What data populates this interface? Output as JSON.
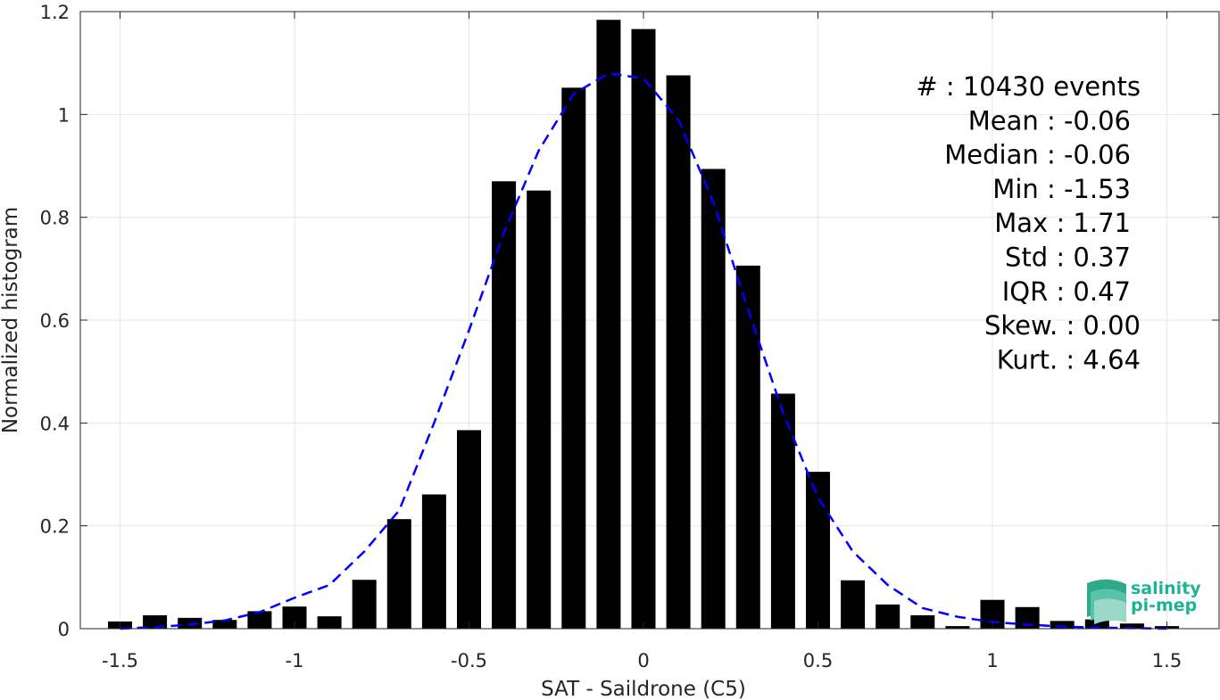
{
  "chart_data": {
    "type": "bar",
    "xlabel": "SAT - Saildrone (C5)",
    "ylabel": "Normalized histogram",
    "xlim": [
      -1.55,
      1.55
    ],
    "ylim": [
      0,
      1.2
    ],
    "xticks": [
      -1.5,
      -1,
      -0.5,
      0,
      0.5,
      1,
      1.5
    ],
    "xtick_labels": [
      "-1.5",
      "-1",
      "-0.5",
      "0",
      "0.5",
      "1",
      "1.5"
    ],
    "yticks": [
      0,
      0.2,
      0.4,
      0.6,
      0.8,
      1,
      1.2
    ],
    "ytick_labels": [
      "0",
      "0.2",
      "0.4",
      "0.6",
      "0.8",
      "1",
      "1.2"
    ],
    "grid": true,
    "bar_color": "#000000",
    "fit_color": "#0000ff",
    "bars": {
      "x": [
        -1.5,
        -1.4,
        -1.3,
        -1.2,
        -1.1,
        -1.0,
        -0.9,
        -0.8,
        -0.7,
        -0.6,
        -0.5,
        -0.4,
        -0.3,
        -0.2,
        -0.1,
        0.0,
        0.1,
        0.2,
        0.3,
        0.4,
        0.5,
        0.6,
        0.7,
        0.8,
        0.9,
        1.0,
        1.1,
        1.2,
        1.3,
        1.4,
        1.5
      ],
      "values": [
        0.014,
        0.026,
        0.021,
        0.017,
        0.034,
        0.043,
        0.024,
        0.095,
        0.213,
        0.261,
        0.386,
        0.87,
        0.852,
        1.052,
        1.184,
        1.166,
        1.076,
        0.894,
        0.706,
        0.457,
        0.305,
        0.094,
        0.047,
        0.026,
        0.005,
        0.056,
        0.042,
        0.015,
        0.018,
        0.01,
        0.005
      ]
    },
    "fit_curve": {
      "style": "dashed",
      "x": [
        -1.5,
        -1.4,
        -1.3,
        -1.2,
        -1.1,
        -1.0,
        -0.9,
        -0.8,
        -0.7,
        -0.6,
        -0.5,
        -0.4,
        -0.3,
        -0.2,
        -0.1,
        -0.05,
        0.0,
        0.1,
        0.2,
        0.3,
        0.4,
        0.5,
        0.6,
        0.7,
        0.8,
        0.9,
        1.0,
        1.1,
        1.2,
        1.3,
        1.4,
        1.5
      ],
      "y": [
        0.0,
        0.003,
        0.008,
        0.016,
        0.032,
        0.06,
        0.085,
        0.15,
        0.23,
        0.4,
        0.58,
        0.77,
        0.93,
        1.04,
        1.08,
        1.075,
        1.07,
        0.99,
        0.83,
        0.62,
        0.42,
        0.255,
        0.15,
        0.085,
        0.04,
        0.023,
        0.013,
        0.008,
        0.004,
        0.002,
        0.001,
        0.0
      ]
    },
    "stats": [
      {
        "label": "#  : 10430 events"
      },
      {
        "label": "Mean : -0.06"
      },
      {
        "label": "Median : -0.06"
      },
      {
        "label": "Min : -1.53"
      },
      {
        "label": "Max : 1.71"
      },
      {
        "label": "Std : 0.37"
      },
      {
        "label": "IQR : 0.47"
      },
      {
        "label": "Skew. : 0.00"
      },
      {
        "label": "Kurt. : 4.64"
      }
    ]
  },
  "logo": {
    "line1": "salinity",
    "line2": "pi-mep",
    "color": "#1bb494"
  }
}
